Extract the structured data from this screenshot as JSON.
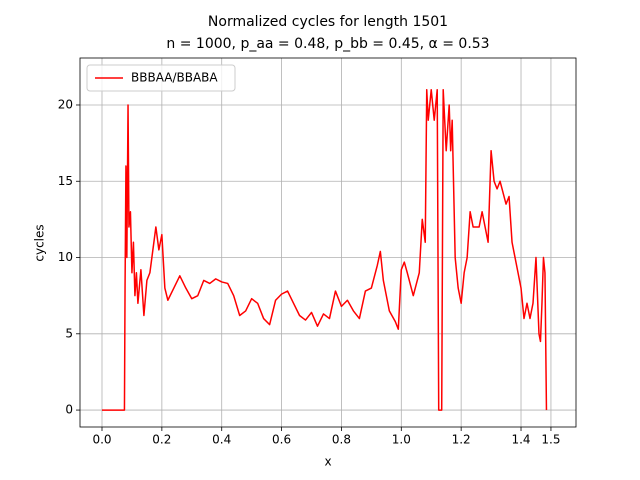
{
  "chart_data": {
    "type": "line",
    "title": "Normalized cycles for length 1501",
    "subtitle": "n = 1000, p_aa = 0.48, p_bb = 0.45, α = 0.53",
    "x_label": "x",
    "y_label": "cycles",
    "grid": true,
    "legend": "upper left",
    "xlim": [
      -0.0735,
      1.5837
    ],
    "ylim": [
      -1.11,
      23.08
    ],
    "xticks": [
      {
        "value": 0,
        "label": "0.0"
      },
      0.2,
      0.4,
      0.6,
      0.8,
      {
        "value": 1,
        "label": "1.0"
      },
      1.2,
      1.4,
      1.5
    ],
    "yticks": [
      0,
      5,
      10,
      15,
      20
    ],
    "x": [
      0,
      0.075,
      0.077,
      0.08,
      0.083,
      0.087,
      0.09,
      0.095,
      0.1,
      0.105,
      0.11,
      0.115,
      0.12,
      0.13,
      0.14,
      0.15,
      0.16,
      0.17,
      0.18,
      0.19,
      0.2,
      0.21,
      0.22,
      0.24,
      0.26,
      0.28,
      0.3,
      0.32,
      0.34,
      0.36,
      0.38,
      0.4,
      0.42,
      0.44,
      0.46,
      0.48,
      0.5,
      0.52,
      0.54,
      0.56,
      0.58,
      0.6,
      0.62,
      0.64,
      0.66,
      0.68,
      0.7,
      0.72,
      0.74,
      0.76,
      0.78,
      0.8,
      0.82,
      0.84,
      0.86,
      0.88,
      0.9,
      0.92,
      0.93,
      0.94,
      0.96,
      0.98,
      0.99,
      1.0,
      1.01,
      1.02,
      1.04,
      1.06,
      1.07,
      1.08,
      1.085,
      1.09,
      1.1,
      1.11,
      1.12,
      1.125,
      1.135,
      1.14,
      1.15,
      1.16,
      1.165,
      1.17,
      1.18,
      1.19,
      1.2,
      1.21,
      1.22,
      1.23,
      1.24,
      1.26,
      1.27,
      1.29,
      1.3,
      1.31,
      1.32,
      1.33,
      1.35,
      1.36,
      1.37,
      1.38,
      1.39,
      1.4,
      1.41,
      1.42,
      1.43,
      1.44,
      1.45,
      1.46,
      1.465,
      1.47,
      1.475,
      1.48,
      1.485
    ],
    "series": [
      {
        "name": "BBBAA/BBABA",
        "color": "#ff0000",
        "values": [
          0,
          0,
          8,
          16,
          10,
          20,
          12,
          13,
          9,
          11,
          7.5,
          9,
          7,
          9.2,
          6.2,
          8.5,
          9,
          10.5,
          12,
          10.5,
          11.5,
          8,
          7.2,
          8,
          8.8,
          8,
          7.3,
          7.5,
          8.5,
          8.3,
          8.6,
          8.4,
          8.3,
          7.5,
          6.2,
          6.5,
          7.3,
          7,
          6,
          5.6,
          7.2,
          7.6,
          7.8,
          7,
          6.2,
          5.9,
          6.4,
          5.5,
          6.3,
          6,
          7.8,
          6.8,
          7.2,
          6.5,
          6,
          7.8,
          8,
          9.5,
          10.4,
          8.5,
          6.5,
          5.8,
          5.3,
          9.2,
          9.7,
          9,
          7.5,
          9,
          12.5,
          11,
          21,
          19,
          21,
          19,
          21,
          0,
          0,
          21,
          17,
          20,
          17,
          19,
          10,
          8,
          7,
          9,
          10,
          13,
          12,
          12,
          13,
          11,
          17,
          15,
          14.5,
          15,
          13.5,
          14,
          11,
          10,
          9,
          8,
          6,
          7,
          6,
          7,
          10,
          5,
          4.5,
          7,
          10,
          9,
          0
        ]
      }
    ]
  }
}
